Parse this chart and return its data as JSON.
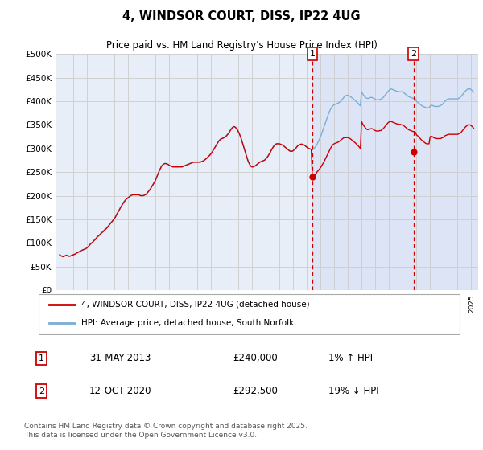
{
  "title": "4, WINDSOR COURT, DISS, IP22 4UG",
  "subtitle": "Price paid vs. HM Land Registry's House Price Index (HPI)",
  "ytick_values": [
    0,
    50000,
    100000,
    150000,
    200000,
    250000,
    300000,
    350000,
    400000,
    450000,
    500000
  ],
  "ylim": [
    0,
    500000
  ],
  "xlim_start": 1994.7,
  "xlim_end": 2025.5,
  "background_color": "#ffffff",
  "plot_bg_color": "#e8eef8",
  "grid_color": "#cccccc",
  "red_line_color": "#cc0000",
  "blue_line_color": "#7aaed6",
  "marker1_x": 2013.42,
  "marker1_y": 240000,
  "marker2_x": 2020.79,
  "marker2_y": 292500,
  "marker1_label": "1",
  "marker2_label": "2",
  "marker1_date": "31-MAY-2013",
  "marker1_price": "£240,000",
  "marker1_hpi": "1% ↑ HPI",
  "marker2_date": "12-OCT-2020",
  "marker2_price": "£292,500",
  "marker2_hpi": "19% ↓ HPI",
  "legend_line1": "4, WINDSOR COURT, DISS, IP22 4UG (detached house)",
  "legend_line2": "HPI: Average price, detached house, South Norfolk",
  "footer": "Contains HM Land Registry data © Crown copyright and database right 2025.\nThis data is licensed under the Open Government Licence v3.0.",
  "hpi_red_x": [
    1995.0,
    1995.083,
    1995.167,
    1995.25,
    1995.333,
    1995.417,
    1995.5,
    1995.583,
    1995.667,
    1995.75,
    1995.833,
    1995.917,
    1996.0,
    1996.083,
    1996.167,
    1996.25,
    1996.333,
    1996.417,
    1996.5,
    1996.583,
    1996.667,
    1996.75,
    1996.833,
    1996.917,
    1997.0,
    1997.083,
    1997.167,
    1997.25,
    1997.333,
    1997.417,
    1997.5,
    1997.583,
    1997.667,
    1997.75,
    1997.833,
    1997.917,
    1998.0,
    1998.083,
    1998.167,
    1998.25,
    1998.333,
    1998.417,
    1998.5,
    1998.583,
    1998.667,
    1998.75,
    1998.833,
    1998.917,
    1999.0,
    1999.083,
    1999.167,
    1999.25,
    1999.333,
    1999.417,
    1999.5,
    1999.583,
    1999.667,
    1999.75,
    1999.833,
    1999.917,
    2000.0,
    2000.083,
    2000.167,
    2000.25,
    2000.333,
    2000.417,
    2000.5,
    2000.583,
    2000.667,
    2000.75,
    2000.833,
    2000.917,
    2001.0,
    2001.083,
    2001.167,
    2001.25,
    2001.333,
    2001.417,
    2001.5,
    2001.583,
    2001.667,
    2001.75,
    2001.833,
    2001.917,
    2002.0,
    2002.083,
    2002.167,
    2002.25,
    2002.333,
    2002.417,
    2002.5,
    2002.583,
    2002.667,
    2002.75,
    2002.833,
    2002.917,
    2003.0,
    2003.083,
    2003.167,
    2003.25,
    2003.333,
    2003.417,
    2003.5,
    2003.583,
    2003.667,
    2003.75,
    2003.833,
    2003.917,
    2004.0,
    2004.083,
    2004.167,
    2004.25,
    2004.333,
    2004.417,
    2004.5,
    2004.583,
    2004.667,
    2004.75,
    2004.833,
    2004.917,
    2005.0,
    2005.083,
    2005.167,
    2005.25,
    2005.333,
    2005.417,
    2005.5,
    2005.583,
    2005.667,
    2005.75,
    2005.833,
    2005.917,
    2006.0,
    2006.083,
    2006.167,
    2006.25,
    2006.333,
    2006.417,
    2006.5,
    2006.583,
    2006.667,
    2006.75,
    2006.833,
    2006.917,
    2007.0,
    2007.083,
    2007.167,
    2007.25,
    2007.333,
    2007.417,
    2007.5,
    2007.583,
    2007.667,
    2007.75,
    2007.833,
    2007.917,
    2008.0,
    2008.083,
    2008.167,
    2008.25,
    2008.333,
    2008.417,
    2008.5,
    2008.583,
    2008.667,
    2008.75,
    2008.833,
    2008.917,
    2009.0,
    2009.083,
    2009.167,
    2009.25,
    2009.333,
    2009.417,
    2009.5,
    2009.583,
    2009.667,
    2009.75,
    2009.833,
    2009.917,
    2010.0,
    2010.083,
    2010.167,
    2010.25,
    2010.333,
    2010.417,
    2010.5,
    2010.583,
    2010.667,
    2010.75,
    2010.833,
    2010.917,
    2011.0,
    2011.083,
    2011.167,
    2011.25,
    2011.333,
    2011.417,
    2011.5,
    2011.583,
    2011.667,
    2011.75,
    2011.833,
    2011.917,
    2012.0,
    2012.083,
    2012.167,
    2012.25,
    2012.333,
    2012.417,
    2012.5,
    2012.583,
    2012.667,
    2012.75,
    2012.833,
    2012.917,
    2013.0,
    2013.083,
    2013.167,
    2013.25,
    2013.333,
    2013.417,
    2013.5,
    2013.583,
    2013.667,
    2013.75,
    2013.833,
    2013.917,
    2014.0,
    2014.083,
    2014.167,
    2014.25,
    2014.333,
    2014.417,
    2014.5,
    2014.583,
    2014.667,
    2014.75,
    2014.833,
    2014.917,
    2015.0,
    2015.083,
    2015.167,
    2015.25,
    2015.333,
    2015.417,
    2015.5,
    2015.583,
    2015.667,
    2015.75,
    2015.833,
    2015.917,
    2016.0,
    2016.083,
    2016.167,
    2016.25,
    2016.333,
    2016.417,
    2016.5,
    2016.583,
    2016.667,
    2016.75,
    2016.833,
    2016.917,
    2017.0,
    2017.083,
    2017.167,
    2017.25,
    2017.333,
    2017.417,
    2017.5,
    2017.583,
    2017.667,
    2017.75,
    2017.833,
    2017.917,
    2018.0,
    2018.083,
    2018.167,
    2018.25,
    2018.333,
    2018.417,
    2018.5,
    2018.583,
    2018.667,
    2018.75,
    2018.833,
    2018.917,
    2019.0,
    2019.083,
    2019.167,
    2019.25,
    2019.333,
    2019.417,
    2019.5,
    2019.583,
    2019.667,
    2019.75,
    2019.833,
    2019.917,
    2020.0,
    2020.083,
    2020.167,
    2020.25,
    2020.333,
    2020.417,
    2020.5,
    2020.583,
    2020.667,
    2020.75,
    2020.833,
    2020.917,
    2021.0,
    2021.083,
    2021.167,
    2021.25,
    2021.333,
    2021.417,
    2021.5,
    2021.583,
    2021.667,
    2021.75,
    2021.833,
    2021.917,
    2022.0,
    2022.083,
    2022.167,
    2022.25,
    2022.333,
    2022.417,
    2022.5,
    2022.583,
    2022.667,
    2022.75,
    2022.833,
    2022.917,
    2023.0,
    2023.083,
    2023.167,
    2023.25,
    2023.333,
    2023.417,
    2023.5,
    2023.583,
    2023.667,
    2023.75,
    2023.833,
    2023.917,
    2024.0,
    2024.083,
    2024.167,
    2024.25,
    2024.333,
    2024.417,
    2024.5,
    2024.583,
    2024.667,
    2024.75,
    2024.833,
    2024.917,
    2025.0,
    2025.083,
    2025.167
  ],
  "hpi_red_y": [
    75000,
    73000,
    72000,
    71000,
    72000,
    73000,
    74000,
    73000,
    72000,
    72000,
    73000,
    74000,
    75000,
    76000,
    77000,
    79000,
    80000,
    81000,
    83000,
    84000,
    85000,
    86000,
    87000,
    88000,
    90000,
    92000,
    95000,
    98000,
    100000,
    102000,
    105000,
    107000,
    110000,
    113000,
    115000,
    117000,
    120000,
    122000,
    124000,
    127000,
    129000,
    131000,
    134000,
    137000,
    140000,
    143000,
    146000,
    149000,
    152000,
    156000,
    161000,
    165000,
    169000,
    174000,
    178000,
    182000,
    186000,
    189000,
    192000,
    194000,
    196000,
    198000,
    200000,
    201000,
    202000,
    202000,
    202000,
    202000,
    202000,
    202000,
    201000,
    200000,
    200000,
    200000,
    201000,
    202000,
    204000,
    207000,
    210000,
    213000,
    217000,
    221000,
    225000,
    229000,
    234000,
    240000,
    246000,
    252000,
    257000,
    262000,
    265000,
    267000,
    268000,
    268000,
    267000,
    266000,
    264000,
    263000,
    262000,
    261000,
    261000,
    261000,
    261000,
    261000,
    261000,
    261000,
    261000,
    261000,
    262000,
    263000,
    264000,
    265000,
    266000,
    267000,
    268000,
    269000,
    270000,
    271000,
    271000,
    271000,
    271000,
    271000,
    271000,
    271000,
    272000,
    273000,
    274000,
    276000,
    278000,
    280000,
    283000,
    285000,
    288000,
    291000,
    295000,
    299000,
    303000,
    307000,
    311000,
    315000,
    318000,
    320000,
    321000,
    322000,
    323000,
    325000,
    327000,
    330000,
    333000,
    337000,
    341000,
    344000,
    346000,
    346000,
    344000,
    341000,
    337000,
    332000,
    326000,
    319000,
    311000,
    303000,
    295000,
    287000,
    279000,
    272000,
    267000,
    263000,
    261000,
    261000,
    262000,
    263000,
    265000,
    267000,
    269000,
    271000,
    272000,
    273000,
    274000,
    275000,
    277000,
    280000,
    283000,
    287000,
    291000,
    296000,
    300000,
    304000,
    307000,
    309000,
    310000,
    310000,
    310000,
    309000,
    308000,
    307000,
    305000,
    303000,
    301000,
    299000,
    297000,
    295000,
    294000,
    294000,
    295000,
    297000,
    299000,
    302000,
    305000,
    307000,
    308000,
    309000,
    309000,
    308000,
    307000,
    305000,
    303000,
    301000,
    300000,
    299000,
    298000,
    239000,
    241000,
    243000,
    246000,
    250000,
    253000,
    256000,
    259000,
    263000,
    267000,
    271000,
    276000,
    281000,
    286000,
    291000,
    296000,
    301000,
    305000,
    308000,
    310000,
    311000,
    312000,
    313000,
    314000,
    316000,
    318000,
    320000,
    322000,
    323000,
    323000,
    323000,
    323000,
    322000,
    321000,
    319000,
    317000,
    315000,
    313000,
    311000,
    308000,
    306000,
    303000,
    300000,
    357000,
    352000,
    348000,
    345000,
    342000,
    340000,
    340000,
    341000,
    342000,
    342000,
    341000,
    339000,
    338000,
    337000,
    337000,
    337000,
    338000,
    338000,
    340000,
    342000,
    345000,
    348000,
    351000,
    354000,
    356000,
    357000,
    357000,
    356000,
    355000,
    354000,
    353000,
    352000,
    352000,
    351000,
    351000,
    350000,
    350000,
    348000,
    346000,
    344000,
    342000,
    340000,
    339000,
    338000,
    337000,
    336000,
    336000,
    335000,
    329000,
    327000,
    325000,
    322000,
    319000,
    317000,
    315000,
    313000,
    311000,
    310000,
    310000,
    310000,
    325000,
    326000,
    325000,
    323000,
    322000,
    321000,
    321000,
    321000,
    321000,
    321000,
    322000,
    323000,
    325000,
    327000,
    328000,
    329000,
    330000,
    330000,
    330000,
    330000,
    330000,
    330000,
    330000,
    330000,
    330000,
    331000,
    332000,
    334000,
    337000,
    340000,
    343000,
    346000,
    348000,
    350000,
    350000,
    350000,
    348000,
    346000,
    343000
  ],
  "hpi_blue_x": [
    1995.0,
    1995.083,
    1995.167,
    1995.25,
    1995.333,
    1995.417,
    1995.5,
    1995.583,
    1995.667,
    1995.75,
    1995.833,
    1995.917,
    1996.0,
    1996.083,
    1996.167,
    1996.25,
    1996.333,
    1996.417,
    1996.5,
    1996.583,
    1996.667,
    1996.75,
    1996.833,
    1996.917,
    1997.0,
    1997.083,
    1997.167,
    1997.25,
    1997.333,
    1997.417,
    1997.5,
    1997.583,
    1997.667,
    1997.75,
    1997.833,
    1997.917,
    1998.0,
    1998.083,
    1998.167,
    1998.25,
    1998.333,
    1998.417,
    1998.5,
    1998.583,
    1998.667,
    1998.75,
    1998.833,
    1998.917,
    1999.0,
    1999.083,
    1999.167,
    1999.25,
    1999.333,
    1999.417,
    1999.5,
    1999.583,
    1999.667,
    1999.75,
    1999.833,
    1999.917,
    2000.0,
    2000.083,
    2000.167,
    2000.25,
    2000.333,
    2000.417,
    2000.5,
    2000.583,
    2000.667,
    2000.75,
    2000.833,
    2000.917,
    2001.0,
    2001.083,
    2001.167,
    2001.25,
    2001.333,
    2001.417,
    2001.5,
    2001.583,
    2001.667,
    2001.75,
    2001.833,
    2001.917,
    2002.0,
    2002.083,
    2002.167,
    2002.25,
    2002.333,
    2002.417,
    2002.5,
    2002.583,
    2002.667,
    2002.75,
    2002.833,
    2002.917,
    2003.0,
    2003.083,
    2003.167,
    2003.25,
    2003.333,
    2003.417,
    2003.5,
    2003.583,
    2003.667,
    2003.75,
    2003.833,
    2003.917,
    2004.0,
    2004.083,
    2004.167,
    2004.25,
    2004.333,
    2004.417,
    2004.5,
    2004.583,
    2004.667,
    2004.75,
    2004.833,
    2004.917,
    2005.0,
    2005.083,
    2005.167,
    2005.25,
    2005.333,
    2005.417,
    2005.5,
    2005.583,
    2005.667,
    2005.75,
    2005.833,
    2005.917,
    2006.0,
    2006.083,
    2006.167,
    2006.25,
    2006.333,
    2006.417,
    2006.5,
    2006.583,
    2006.667,
    2006.75,
    2006.833,
    2006.917,
    2007.0,
    2007.083,
    2007.167,
    2007.25,
    2007.333,
    2007.417,
    2007.5,
    2007.583,
    2007.667,
    2007.75,
    2007.833,
    2007.917,
    2008.0,
    2008.083,
    2008.167,
    2008.25,
    2008.333,
    2008.417,
    2008.5,
    2008.583,
    2008.667,
    2008.75,
    2008.833,
    2008.917,
    2009.0,
    2009.083,
    2009.167,
    2009.25,
    2009.333,
    2009.417,
    2009.5,
    2009.583,
    2009.667,
    2009.75,
    2009.833,
    2009.917,
    2010.0,
    2010.083,
    2010.167,
    2010.25,
    2010.333,
    2010.417,
    2010.5,
    2010.583,
    2010.667,
    2010.75,
    2010.833,
    2010.917,
    2011.0,
    2011.083,
    2011.167,
    2011.25,
    2011.333,
    2011.417,
    2011.5,
    2011.583,
    2011.667,
    2011.75,
    2011.833,
    2011.917,
    2012.0,
    2012.083,
    2012.167,
    2012.25,
    2012.333,
    2012.417,
    2012.5,
    2012.583,
    2012.667,
    2012.75,
    2012.833,
    2012.917,
    2013.0,
    2013.083,
    2013.167,
    2013.25,
    2013.333,
    2013.417,
    2013.5,
    2013.583,
    2013.667,
    2013.75,
    2013.833,
    2013.917,
    2014.0,
    2014.083,
    2014.167,
    2014.25,
    2014.333,
    2014.417,
    2014.5,
    2014.583,
    2014.667,
    2014.75,
    2014.833,
    2014.917,
    2015.0,
    2015.083,
    2015.167,
    2015.25,
    2015.333,
    2015.417,
    2015.5,
    2015.583,
    2015.667,
    2015.75,
    2015.833,
    2015.917,
    2016.0,
    2016.083,
    2016.167,
    2016.25,
    2016.333,
    2016.417,
    2016.5,
    2016.583,
    2016.667,
    2016.75,
    2016.833,
    2016.917,
    2017.0,
    2017.083,
    2017.167,
    2017.25,
    2017.333,
    2017.417,
    2017.5,
    2017.583,
    2017.667,
    2017.75,
    2017.833,
    2017.917,
    2018.0,
    2018.083,
    2018.167,
    2018.25,
    2018.333,
    2018.417,
    2018.5,
    2018.583,
    2018.667,
    2018.75,
    2018.833,
    2018.917,
    2019.0,
    2019.083,
    2019.167,
    2019.25,
    2019.333,
    2019.417,
    2019.5,
    2019.583,
    2019.667,
    2019.75,
    2019.833,
    2019.917,
    2020.0,
    2020.083,
    2020.167,
    2020.25,
    2020.333,
    2020.417,
    2020.5,
    2020.583,
    2020.667,
    2020.75,
    2020.833,
    2020.917,
    2021.0,
    2021.083,
    2021.167,
    2021.25,
    2021.333,
    2021.417,
    2021.5,
    2021.583,
    2021.667,
    2021.75,
    2021.833,
    2021.917,
    2022.0,
    2022.083,
    2022.167,
    2022.25,
    2022.333,
    2022.417,
    2022.5,
    2022.583,
    2022.667,
    2022.75,
    2022.833,
    2022.917,
    2023.0,
    2023.083,
    2023.167,
    2023.25,
    2023.333,
    2023.417,
    2023.5,
    2023.583,
    2023.667,
    2023.75,
    2023.833,
    2023.917,
    2024.0,
    2024.083,
    2024.167,
    2024.25,
    2024.333,
    2024.417,
    2024.5,
    2024.583,
    2024.667,
    2024.75,
    2024.833,
    2024.917,
    2025.0,
    2025.083,
    2025.167
  ],
  "hpi_blue_y": [
    75500,
    73500,
    72500,
    71500,
    72500,
    73500,
    74500,
    73500,
    72500,
    72500,
    73500,
    74500,
    75500,
    76500,
    77500,
    79500,
    80500,
    81500,
    83500,
    84500,
    85500,
    86500,
    87500,
    88500,
    90500,
    92500,
    95500,
    98500,
    100500,
    102500,
    105500,
    107500,
    110500,
    113500,
    115500,
    117500,
    120500,
    122500,
    124500,
    127500,
    129500,
    131500,
    134500,
    137500,
    140500,
    143500,
    146500,
    149500,
    152500,
    156500,
    161500,
    165500,
    169500,
    174500,
    178500,
    182500,
    186500,
    189500,
    192500,
    194500,
    196500,
    198500,
    200500,
    201500,
    202500,
    202500,
    202500,
    202500,
    202500,
    202500,
    201500,
    200500,
    200500,
    200500,
    201500,
    202500,
    204500,
    207500,
    210500,
    213500,
    217500,
    221500,
    225500,
    229500,
    234500,
    240500,
    246500,
    252500,
    257500,
    262500,
    265500,
    267500,
    268500,
    268500,
    267500,
    266500,
    264500,
    263500,
    262500,
    261500,
    261500,
    261500,
    261500,
    261500,
    261500,
    261500,
    261500,
    261500,
    262500,
    263500,
    264500,
    265500,
    266500,
    267500,
    268500,
    269500,
    270500,
    271500,
    271500,
    271500,
    271500,
    271500,
    271500,
    271500,
    272500,
    273500,
    274500,
    276500,
    278500,
    280500,
    283500,
    285500,
    288500,
    291500,
    295500,
    299500,
    303500,
    307500,
    311500,
    315500,
    318500,
    320500,
    321500,
    322500,
    323500,
    325500,
    327500,
    330500,
    333500,
    337500,
    341500,
    344500,
    346500,
    346500,
    344500,
    341500,
    337500,
    332500,
    326500,
    319500,
    311500,
    303500,
    295500,
    287500,
    279500,
    272500,
    267500,
    263500,
    261500,
    261500,
    262500,
    263500,
    265500,
    267500,
    269500,
    271500,
    272500,
    273500,
    274500,
    275500,
    277500,
    280500,
    283500,
    287500,
    291500,
    296500,
    300500,
    304500,
    307500,
    309500,
    310500,
    310500,
    310500,
    309500,
    308500,
    307500,
    305500,
    303500,
    301500,
    299500,
    297500,
    295500,
    294500,
    294500,
    295500,
    297500,
    299500,
    302500,
    305500,
    307500,
    308500,
    309500,
    309500,
    308500,
    307500,
    305500,
    303500,
    301500,
    300500,
    299500,
    298500,
    298500,
    299500,
    301500,
    304500,
    308500,
    313500,
    318500,
    324500,
    330500,
    337500,
    344500,
    351500,
    358500,
    365500,
    372500,
    378500,
    383500,
    387500,
    390500,
    392500,
    393500,
    394500,
    395500,
    396500,
    398500,
    400500,
    403500,
    406500,
    409500,
    411500,
    412500,
    412500,
    411500,
    410500,
    408500,
    406500,
    404500,
    402500,
    400500,
    397500,
    395500,
    392500,
    390500,
    420000,
    416000,
    412000,
    409000,
    407000,
    406000,
    406000,
    407000,
    408000,
    408000,
    407000,
    405000,
    404000,
    403000,
    403000,
    403000,
    404000,
    404000,
    406000,
    408000,
    411000,
    414000,
    417000,
    420000,
    423000,
    425000,
    426000,
    425000,
    424000,
    423000,
    422000,
    421000,
    421000,
    420000,
    420000,
    420000,
    420000,
    418000,
    416000,
    414000,
    412000,
    410000,
    409000,
    408000,
    407000,
    406000,
    406000,
    405000,
    400000,
    398000,
    396000,
    394000,
    392000,
    390000,
    389000,
    388000,
    387000,
    386000,
    386000,
    386000,
    390000,
    392000,
    391000,
    390000,
    389000,
    389000,
    389000,
    389000,
    390000,
    391000,
    392000,
    394000,
    397000,
    400000,
    402000,
    404000,
    405000,
    405000,
    405000,
    405000,
    405000,
    405000,
    405000,
    405000,
    405000,
    406000,
    408000,
    410000,
    413000,
    416000,
    419000,
    422000,
    424000,
    426000,
    426000,
    426000,
    424000,
    422000,
    419000
  ]
}
